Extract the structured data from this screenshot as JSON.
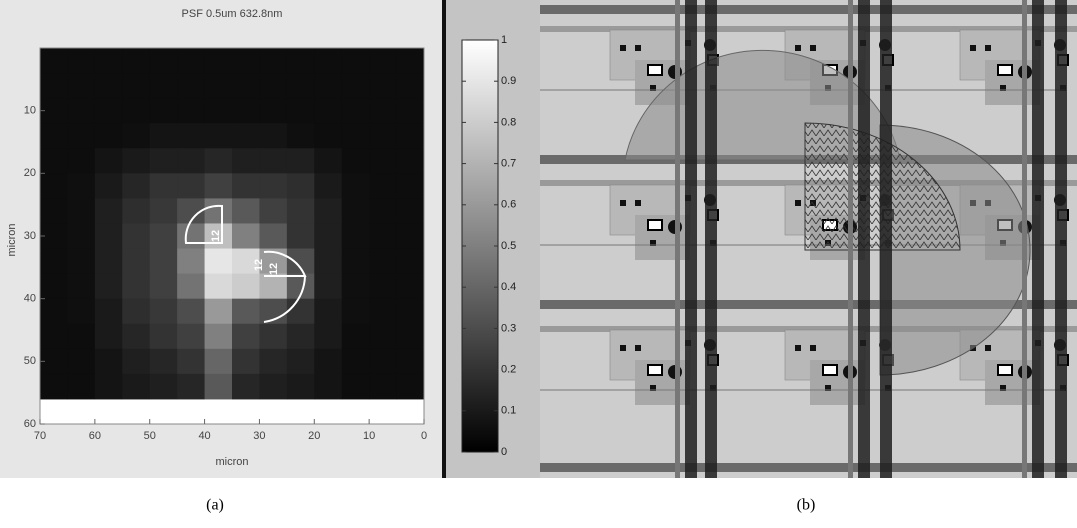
{
  "chart_data": [
    {
      "type": "heatmap",
      "title": "PSF   0.5um 632.8nm",
      "xlabel": "micron",
      "ylabel": "micron",
      "xlim": [
        70,
        0
      ],
      "ylim": [
        0,
        60
      ],
      "xticks": [
        70,
        60,
        50,
        40,
        30,
        20,
        10,
        0
      ],
      "yticks": [
        10,
        20,
        30,
        40,
        50,
        60
      ],
      "xbins": [
        70,
        65,
        60,
        55,
        50,
        45,
        40,
        35,
        30,
        25,
        20,
        15,
        10,
        5,
        0
      ],
      "ybins": [
        0,
        4,
        8,
        12,
        16,
        20,
        24,
        28,
        32,
        36,
        40,
        44,
        48,
        52,
        56
      ],
      "z": [
        [
          0.05,
          0.05,
          0.05,
          0.05,
          0.05,
          0.05,
          0.05,
          0.05,
          0.05,
          0.05,
          0.05,
          0.05,
          0.05,
          0.05
        ],
        [
          0.05,
          0.05,
          0.05,
          0.05,
          0.05,
          0.05,
          0.05,
          0.05,
          0.05,
          0.05,
          0.05,
          0.05,
          0.05,
          0.05
        ],
        [
          0.05,
          0.05,
          0.05,
          0.05,
          0.05,
          0.05,
          0.05,
          0.05,
          0.05,
          0.05,
          0.05,
          0.05,
          0.05,
          0.05
        ],
        [
          0.05,
          0.05,
          0.05,
          0.06,
          0.08,
          0.08,
          0.08,
          0.08,
          0.08,
          0.06,
          0.05,
          0.05,
          0.05,
          0.05
        ],
        [
          0.05,
          0.05,
          0.08,
          0.1,
          0.12,
          0.12,
          0.15,
          0.12,
          0.12,
          0.12,
          0.08,
          0.05,
          0.05,
          0.05
        ],
        [
          0.05,
          0.06,
          0.1,
          0.15,
          0.2,
          0.2,
          0.25,
          0.2,
          0.2,
          0.18,
          0.1,
          0.06,
          0.05,
          0.05
        ],
        [
          0.05,
          0.06,
          0.12,
          0.18,
          0.22,
          0.3,
          0.45,
          0.35,
          0.25,
          0.2,
          0.12,
          0.06,
          0.05,
          0.05
        ],
        [
          0.05,
          0.06,
          0.12,
          0.2,
          0.25,
          0.45,
          0.75,
          0.5,
          0.35,
          0.2,
          0.12,
          0.06,
          0.05,
          0.05
        ],
        [
          0.05,
          0.06,
          0.12,
          0.2,
          0.25,
          0.5,
          0.9,
          0.85,
          0.6,
          0.3,
          0.12,
          0.06,
          0.05,
          0.05
        ],
        [
          0.05,
          0.06,
          0.12,
          0.2,
          0.25,
          0.45,
          0.85,
          0.8,
          0.7,
          0.35,
          0.12,
          0.06,
          0.05,
          0.05
        ],
        [
          0.05,
          0.06,
          0.1,
          0.18,
          0.22,
          0.3,
          0.6,
          0.35,
          0.3,
          0.2,
          0.1,
          0.06,
          0.05,
          0.05
        ],
        [
          0.05,
          0.05,
          0.1,
          0.15,
          0.2,
          0.25,
          0.5,
          0.25,
          0.2,
          0.15,
          0.1,
          0.05,
          0.05,
          0.05
        ],
        [
          0.05,
          0.05,
          0.08,
          0.12,
          0.15,
          0.2,
          0.4,
          0.2,
          0.15,
          0.12,
          0.08,
          0.05,
          0.05,
          0.05
        ],
        [
          0.05,
          0.05,
          0.08,
          0.1,
          0.12,
          0.15,
          0.35,
          0.15,
          0.12,
          0.1,
          0.08,
          0.05,
          0.05,
          0.05
        ]
      ],
      "annotations": [
        "12",
        "12",
        "12"
      ]
    },
    {
      "type": "colorbar",
      "ylim": [
        0,
        1
      ],
      "yticks": [
        0,
        0.1,
        0.2,
        0.3,
        0.4,
        0.5,
        0.6,
        0.7,
        0.8,
        0.9,
        1
      ]
    }
  ],
  "captions": [
    "(a)",
    "(b)"
  ]
}
